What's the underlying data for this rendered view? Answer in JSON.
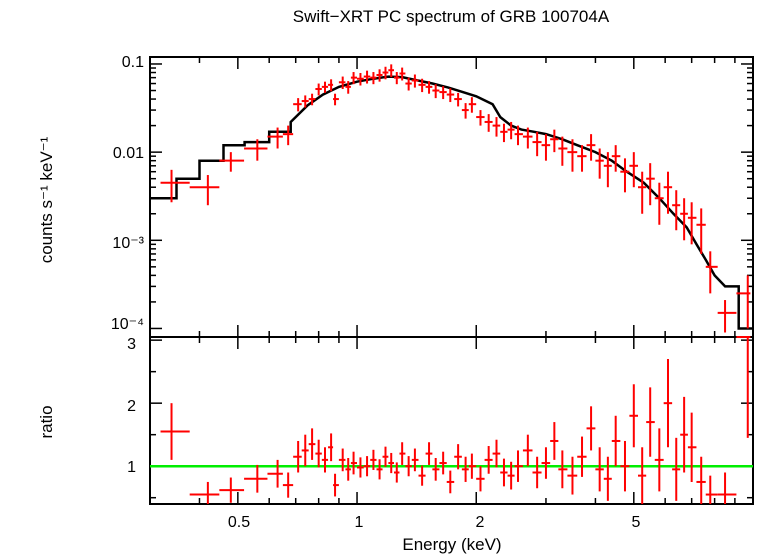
{
  "chart_data": [
    {
      "type": "scatter",
      "title": "Swift−XRT PC spectrum of GRB 100704A",
      "xlabel": "",
      "ylabel": "counts s⁻¹ keV⁻¹",
      "xscale": "log",
      "yscale": "log",
      "xlim": [
        0.3,
        10
      ],
      "ylim": [
        8e-05,
        0.12
      ],
      "ytick_labels": [
        "0.1",
        "0.01",
        "10⁻³",
        "10⁻⁴"
      ],
      "colors": {
        "data": "#ff0000",
        "model": "#000000"
      },
      "series": [
        {
          "name": "",
          "x": [
            0.34,
            0.42,
            0.48,
            0.56,
            0.63,
            0.67,
            0.71,
            0.74,
            0.77,
            0.8,
            0.83,
            0.86,
            0.88,
            0.92,
            0.95,
            0.98,
            1.02,
            1.06,
            1.1,
            1.14,
            1.18,
            1.22,
            1.26,
            1.3,
            1.35,
            1.4,
            1.46,
            1.52,
            1.58,
            1.65,
            1.72,
            1.8,
            1.88,
            1.95,
            2.05,
            2.15,
            2.25,
            2.35,
            2.45,
            2.55,
            2.7,
            2.85,
            3.0,
            3.15,
            3.3,
            3.5,
            3.7,
            3.9,
            4.1,
            4.3,
            4.5,
            4.75,
            5.0,
            5.25,
            5.5,
            5.8,
            6.1,
            6.4,
            6.7,
            7.0,
            7.4,
            7.8,
            8.5,
            9.7
          ],
          "y": [
            0.0045,
            0.004,
            0.008,
            0.011,
            0.015,
            0.016,
            0.035,
            0.038,
            0.04,
            0.052,
            0.055,
            0.058,
            0.04,
            0.062,
            0.055,
            0.07,
            0.068,
            0.072,
            0.07,
            0.075,
            0.08,
            0.085,
            0.07,
            0.078,
            0.06,
            0.065,
            0.058,
            0.055,
            0.05,
            0.048,
            0.045,
            0.04,
            0.03,
            0.035,
            0.025,
            0.022,
            0.02,
            0.017,
            0.018,
            0.016,
            0.015,
            0.013,
            0.012,
            0.014,
            0.011,
            0.01,
            0.009,
            0.012,
            0.008,
            0.007,
            0.009,
            0.006,
            0.007,
            0.004,
            0.005,
            0.003,
            0.004,
            0.0025,
            0.002,
            0.0018,
            0.0015,
            0.0005,
            0.00015,
            0.00025
          ],
          "yerr": [
            0.0018,
            0.0015,
            0.002,
            0.003,
            0.004,
            0.004,
            0.006,
            0.006,
            0.006,
            0.008,
            0.008,
            0.009,
            0.006,
            0.01,
            0.009,
            0.011,
            0.011,
            0.012,
            0.011,
            0.012,
            0.013,
            0.014,
            0.011,
            0.013,
            0.01,
            0.011,
            0.01,
            0.009,
            0.009,
            0.008,
            0.008,
            0.007,
            0.006,
            0.007,
            0.005,
            0.005,
            0.005,
            0.004,
            0.004,
            0.004,
            0.004,
            0.004,
            0.004,
            0.004,
            0.004,
            0.004,
            0.003,
            0.004,
            0.003,
            0.003,
            0.003,
            0.0025,
            0.003,
            0.002,
            0.0025,
            0.0015,
            0.002,
            0.0012,
            0.001,
            0.0009,
            0.0008,
            0.00025,
            6e-05,
            0.00015
          ]
        },
        {
          "name": "",
          "x": [
            0.3,
            0.35,
            0.35,
            0.4,
            0.4,
            0.46,
            0.46,
            0.52,
            0.52,
            0.6,
            0.6,
            0.68,
            0.68,
            0.75,
            0.82,
            0.9,
            1.0,
            1.1,
            1.2,
            1.3,
            1.4,
            1.55,
            1.7,
            1.85,
            2.0,
            2.2,
            2.3,
            2.45,
            2.6,
            2.8,
            3.0,
            3.3,
            3.6,
            4.0,
            4.4,
            4.8,
            5.3,
            5.8,
            6.3,
            6.8,
            7.2,
            7.6,
            8.0,
            8.5,
            8.5,
            9.2,
            9.2,
            9.8,
            10.0
          ],
          "y": [
            0.003,
            0.003,
            0.005,
            0.005,
            0.008,
            0.008,
            0.012,
            0.012,
            0.013,
            0.013,
            0.017,
            0.017,
            0.022,
            0.034,
            0.045,
            0.055,
            0.063,
            0.068,
            0.072,
            0.071,
            0.066,
            0.06,
            0.054,
            0.048,
            0.043,
            0.035,
            0.025,
            0.02,
            0.018,
            0.017,
            0.016,
            0.014,
            0.012,
            0.01,
            0.008,
            0.006,
            0.0045,
            0.003,
            0.002,
            0.0014,
            0.0009,
            0.0006,
            0.0004,
            0.0003,
            0.0003,
            0.0003,
            0.0001,
            0.0001,
            0.0001
          ]
        }
      ]
    },
    {
      "type": "scatter",
      "title": "",
      "xlabel": "Energy (keV)",
      "ylabel": "ratio",
      "xscale": "log",
      "xlim": [
        0.3,
        10
      ],
      "ylim": [
        0.4,
        3.05
      ],
      "xtick_labels": [
        "0.5",
        "1",
        "2",
        "5"
      ],
      "ytick_labels": [
        "1",
        "2",
        "3"
      ],
      "colors": {
        "data": "#ff0000",
        "reference": "#00ee00"
      },
      "reference_line": 1,
      "series": [
        {
          "name": "",
          "x": [
            0.34,
            0.42,
            0.48,
            0.56,
            0.63,
            0.67,
            0.71,
            0.74,
            0.77,
            0.8,
            0.83,
            0.86,
            0.88,
            0.92,
            0.95,
            0.98,
            1.02,
            1.06,
            1.1,
            1.14,
            1.18,
            1.22,
            1.26,
            1.3,
            1.35,
            1.4,
            1.46,
            1.52,
            1.58,
            1.65,
            1.72,
            1.8,
            1.88,
            1.95,
            2.05,
            2.15,
            2.25,
            2.35,
            2.45,
            2.55,
            2.7,
            2.85,
            3.0,
            3.15,
            3.3,
            3.5,
            3.7,
            3.9,
            4.1,
            4.3,
            4.5,
            4.75,
            5.0,
            5.25,
            5.5,
            5.8,
            6.1,
            6.4,
            6.7,
            7.0,
            7.4,
            7.8,
            8.5,
            9.7
          ],
          "y": [
            1.55,
            0.55,
            0.62,
            0.8,
            0.88,
            0.7,
            1.15,
            1.25,
            1.35,
            1.2,
            1.1,
            1.3,
            0.7,
            1.1,
            0.95,
            1.05,
            0.98,
            1.0,
            1.1,
            0.95,
            1.15,
            1.05,
            0.9,
            1.2,
            1.0,
            1.1,
            0.85,
            1.2,
            0.95,
            1.05,
            0.75,
            1.15,
            0.95,
            1.0,
            0.8,
            1.1,
            1.2,
            0.9,
            0.85,
            1.0,
            1.25,
            0.9,
            1.05,
            1.4,
            0.95,
            0.85,
            1.15,
            1.6,
            0.95,
            0.8,
            1.4,
            1.0,
            1.8,
            0.85,
            1.7,
            1.1,
            2.0,
            0.95,
            1.5,
            1.3,
            0.75,
            0.55,
            0.55,
            3.05
          ],
          "yerr": [
            0.45,
            0.2,
            0.2,
            0.22,
            0.22,
            0.2,
            0.25,
            0.25,
            0.25,
            0.22,
            0.2,
            0.22,
            0.18,
            0.18,
            0.18,
            0.18,
            0.16,
            0.16,
            0.16,
            0.16,
            0.16,
            0.16,
            0.16,
            0.18,
            0.16,
            0.18,
            0.16,
            0.18,
            0.18,
            0.18,
            0.18,
            0.2,
            0.2,
            0.2,
            0.2,
            0.22,
            0.22,
            0.22,
            0.22,
            0.25,
            0.25,
            0.25,
            0.25,
            0.3,
            0.3,
            0.3,
            0.32,
            0.35,
            0.35,
            0.35,
            0.4,
            0.4,
            0.5,
            0.45,
            0.55,
            0.5,
            0.7,
            0.5,
            0.6,
            0.55,
            0.4,
            0.3,
            0.35,
            1.6
          ]
        }
      ]
    }
  ]
}
